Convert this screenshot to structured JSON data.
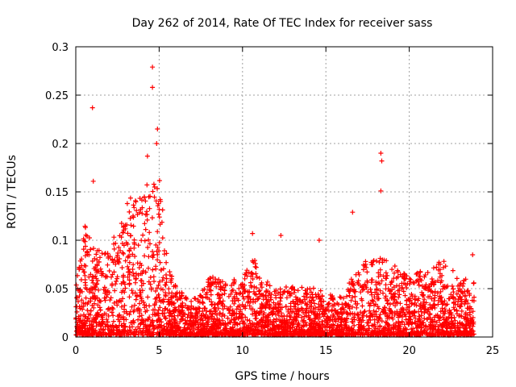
{
  "chart_data": {
    "type": "scatter",
    "title": "Day 262 of 2014, Rate Of TEC Index for receiver sass",
    "xlabel": "GPS time / hours",
    "ylabel": "ROTI / TECUs",
    "xlim": [
      0,
      25
    ],
    "ylim": [
      0,
      0.3
    ],
    "xticks": [
      0,
      5,
      10,
      15,
      20,
      25
    ],
    "yticks": [
      0,
      0.05,
      0.1,
      0.15,
      0.2,
      0.25,
      0.3
    ],
    "xtick_labels": [
      "0",
      "5",
      "10",
      "15",
      "20",
      "25"
    ],
    "ytick_labels": [
      "0",
      "0.05",
      "0.1",
      "0.15",
      "0.2",
      "0.25",
      "0.3"
    ],
    "grid": true,
    "marker": "+",
    "color": "#ff0000",
    "x_data_extent": [
      0,
      23.9
    ],
    "notable_points": [
      {
        "x": 1.0,
        "y": 0.237
      },
      {
        "x": 1.05,
        "y": 0.161
      },
      {
        "x": 4.6,
        "y": 0.279
      },
      {
        "x": 4.6,
        "y": 0.258
      },
      {
        "x": 4.9,
        "y": 0.215
      },
      {
        "x": 4.85,
        "y": 0.2
      },
      {
        "x": 4.3,
        "y": 0.187
      },
      {
        "x": 18.3,
        "y": 0.19
      },
      {
        "x": 18.35,
        "y": 0.182
      },
      {
        "x": 18.3,
        "y": 0.151
      },
      {
        "x": 16.6,
        "y": 0.129
      },
      {
        "x": 10.6,
        "y": 0.107
      },
      {
        "x": 12.3,
        "y": 0.105
      },
      {
        "x": 14.6,
        "y": 0.1
      },
      {
        "x": 23.8,
        "y": 0.085
      }
    ],
    "envelope": [
      {
        "x": 0,
        "ymax": 0.05
      },
      {
        "x": 0.5,
        "ymax": 0.12
      },
      {
        "x": 1,
        "ymax": 0.09
      },
      {
        "x": 2,
        "ymax": 0.09
      },
      {
        "x": 3,
        "ymax": 0.14
      },
      {
        "x": 4,
        "ymax": 0.15
      },
      {
        "x": 5,
        "ymax": 0.17
      },
      {
        "x": 5.5,
        "ymax": 0.08
      },
      {
        "x": 6,
        "ymax": 0.05
      },
      {
        "x": 7,
        "ymax": 0.035
      },
      {
        "x": 8,
        "ymax": 0.06
      },
      {
        "x": 9,
        "ymax": 0.06
      },
      {
        "x": 10,
        "ymax": 0.055
      },
      {
        "x": 10.6,
        "ymax": 0.09
      },
      {
        "x": 11,
        "ymax": 0.06
      },
      {
        "x": 12,
        "ymax": 0.05
      },
      {
        "x": 13,
        "ymax": 0.05
      },
      {
        "x": 14,
        "ymax": 0.05
      },
      {
        "x": 15,
        "ymax": 0.045
      },
      {
        "x": 16,
        "ymax": 0.04
      },
      {
        "x": 16.8,
        "ymax": 0.07
      },
      {
        "x": 17.5,
        "ymax": 0.08
      },
      {
        "x": 18.3,
        "ymax": 0.085
      },
      {
        "x": 19,
        "ymax": 0.075
      },
      {
        "x": 20,
        "ymax": 0.06
      },
      {
        "x": 21,
        "ymax": 0.07
      },
      {
        "x": 22,
        "ymax": 0.08
      },
      {
        "x": 23,
        "ymax": 0.06
      },
      {
        "x": 23.9,
        "ymax": 0.055
      }
    ]
  }
}
